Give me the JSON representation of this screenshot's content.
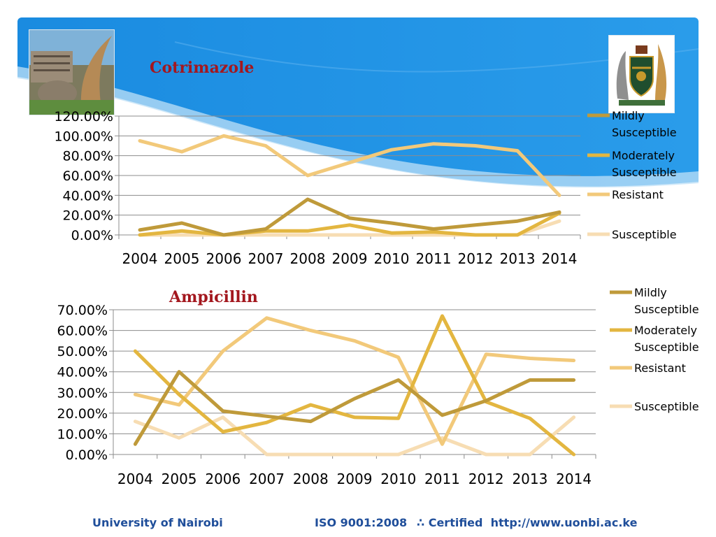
{
  "footer": {
    "org": "University of Nairobi",
    "iso": "ISO 9001:2008",
    "certified": "∴ Certified",
    "url": "http://www.uonbi.ac.ke"
  },
  "colors": {
    "mildly": "#bf9a3a",
    "moderately": "#e3b640",
    "resistant": "#f2c97a",
    "susceptible": "#f7ddb3",
    "title": "#a3171e",
    "footer": "#1f4e9a",
    "banner": "#1b8ee0"
  },
  "chart_data": [
    {
      "type": "line",
      "title": "Cotrimazole",
      "categories": [
        "2004",
        "2005",
        "2006",
        "2007",
        "2008",
        "2009",
        "2010",
        "2011",
        "2012",
        "2013",
        "2014"
      ],
      "yticks": [
        "120.00%",
        "100.00%",
        "80.00%",
        "60.00%",
        "40.00%",
        "20.00%",
        "0.00%"
      ],
      "ylim": [
        0,
        120
      ],
      "grid": true,
      "legend": "right",
      "series": [
        {
          "name": "Mildly Susceptible",
          "legend_lines": [
            "Mildly",
            "Susceptible"
          ],
          "values": [
            5,
            12,
            0,
            6,
            36,
            17,
            12,
            6,
            10,
            14,
            23
          ]
        },
        {
          "name": "Moderately Susceptible",
          "legend_lines": [
            "Moderately",
            "Susceptible"
          ],
          "values": [
            0,
            4,
            0,
            4,
            4,
            10,
            2,
            3,
            0,
            0,
            22
          ]
        },
        {
          "name": "Resistant",
          "legend_lines": [
            "Resistant"
          ],
          "values": [
            95,
            84,
            100,
            90,
            60,
            73,
            86,
            92,
            90,
            85,
            40
          ]
        },
        {
          "name": "Susceptible",
          "legend_lines": [
            "Susceptible"
          ],
          "values": [
            0,
            0,
            0,
            0,
            0,
            0,
            0,
            0,
            0,
            0,
            14
          ]
        }
      ]
    },
    {
      "type": "line",
      "title": "Ampicillin",
      "categories": [
        "2004",
        "2005",
        "2006",
        "2007",
        "2008",
        "2009",
        "2010",
        "2011",
        "2012",
        "2013",
        "2014"
      ],
      "yticks": [
        "70.00%",
        "60.00%",
        "50.00%",
        "40.00%",
        "30.00%",
        "20.00%",
        "10.00%",
        "0.00%"
      ],
      "ylim": [
        0,
        70
      ],
      "grid": true,
      "legend": "right",
      "series": [
        {
          "name": "Mildly Susceptible",
          "legend_lines": [
            "Mildly",
            "Susceptible"
          ],
          "values": [
            5,
            40,
            21,
            18.5,
            16,
            27,
            36,
            19,
            26,
            36,
            36
          ]
        },
        {
          "name": "Moderately Susceptible",
          "legend_lines": [
            "Moderately",
            "Susceptible"
          ],
          "values": [
            50,
            29,
            11,
            15.5,
            24,
            18,
            17.5,
            67,
            25.5,
            17.5,
            0
          ]
        },
        {
          "name": "Resistant",
          "legend_lines": [
            "Resistant"
          ],
          "values": [
            29,
            24,
            50,
            66,
            60,
            55,
            47,
            5,
            48.5,
            46.5,
            45.5
          ]
        },
        {
          "name": "Susceptible",
          "legend_lines": [
            "Susceptible"
          ],
          "values": [
            16,
            8,
            18,
            0,
            0,
            0,
            0,
            8,
            0,
            0,
            18
          ]
        }
      ]
    }
  ]
}
